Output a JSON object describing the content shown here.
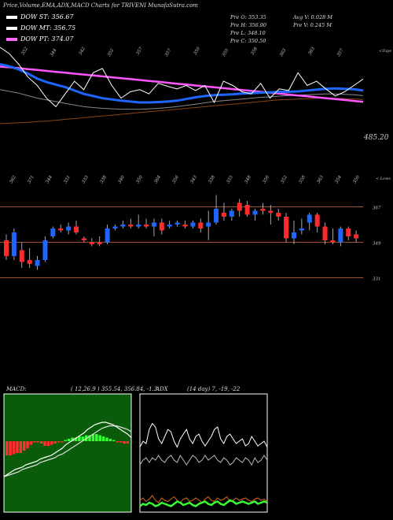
{
  "title": "Price,Volume,EMA,ADX,MACD Charts for TRIVENI MunafaSutra.com",
  "legend": [
    {
      "label": "DOW ST: 356.67",
      "color": "#ffffff"
    },
    {
      "label": "DOW MT: 356.75",
      "color": "#ffffff"
    },
    {
      "label": "DOW PT: 374.07",
      "color": "#ff66ff"
    }
  ],
  "stats": {
    "pre_o": "Pre  O: 353.35",
    "pre_h": "Pre  H: 356.90",
    "pre_l": "Pre  L: 348.10",
    "pre_c": "Pre  C: 350.50",
    "avg_v": "Avg V: 0.028  M",
    "pre_v": "Pre   V: 0.245 M"
  },
  "price_panel": {
    "last_price_label": "485.20",
    "top_axis_label": "<Tops",
    "top_tick_labels": [
      "352",
      "344",
      "342",
      "352",
      "357",
      "357",
      "350",
      "355",
      "358",
      "363",
      "363",
      "357"
    ],
    "upper_y_range": [
      300,
      560
    ],
    "ema_short": [
      520,
      515,
      508,
      498,
      486,
      478,
      472,
      466,
      458,
      450,
      445,
      440,
      437,
      434,
      432,
      430,
      430,
      431,
      432,
      434,
      438,
      442,
      445,
      447,
      448,
      449,
      451,
      452,
      453,
      454,
      455,
      455,
      456,
      458,
      460,
      462,
      463,
      462,
      461,
      458
    ],
    "ema_mid": [
      460,
      456,
      452,
      446,
      440,
      436,
      432,
      428,
      424,
      420,
      418,
      416,
      415,
      414,
      414,
      414,
      415,
      416,
      418,
      420,
      423,
      426,
      429,
      432,
      434,
      436,
      438,
      440,
      442,
      443,
      445,
      446,
      447,
      448,
      449,
      450,
      450,
      449,
      448,
      446
    ],
    "ema_long": [
      380,
      381,
      382,
      383,
      385,
      386,
      388,
      390,
      392,
      394,
      396,
      398,
      400,
      402,
      404,
      406,
      408,
      410,
      412,
      414,
      416,
      418,
      420,
      422,
      424,
      426,
      428,
      430,
      432,
      434,
      436,
      437,
      438,
      439,
      440,
      440,
      440,
      439,
      438,
      437
    ],
    "ema_pt": [
      470,
      468,
      465,
      462,
      459,
      456,
      453,
      450,
      447,
      444,
      441,
      438,
      435,
      432,
      429,
      426,
      423,
      420,
      417,
      414,
      411,
      408,
      405,
      402,
      399,
      396,
      393,
      390,
      387,
      384,
      381,
      378,
      375,
      372,
      369,
      366,
      363,
      360,
      357,
      354
    ],
    "close_line": [
      560,
      545,
      520,
      490,
      470,
      440,
      420,
      450,
      480,
      460,
      500,
      510,
      470,
      440,
      455,
      460,
      450,
      475,
      468,
      462,
      470,
      458,
      470,
      430,
      480,
      470,
      455,
      450,
      475,
      440,
      462,
      458,
      500,
      470,
      480,
      462,
      445,
      455,
      470,
      485
    ]
  },
  "candle_panel": {
    "bottom_axis_label": "< Lows",
    "low_tick_labels": [
      "362",
      "371",
      "344",
      "331",
      "333",
      "338",
      "340",
      "350",
      "364",
      "356",
      "343",
      "338",
      "355",
      "348",
      "356",
      "352",
      "358",
      "363",
      "354",
      "350"
    ],
    "level_labels": [
      "367",
      "349",
      "331"
    ],
    "levels": [
      367,
      349,
      331
    ],
    "y_range": [
      320,
      380
    ],
    "candles": [
      {
        "o": 350,
        "h": 353,
        "l": 340,
        "c": 342
      },
      {
        "o": 342,
        "h": 356,
        "l": 340,
        "c": 354
      },
      {
        "o": 345,
        "h": 349,
        "l": 336,
        "c": 339
      },
      {
        "o": 340,
        "h": 346,
        "l": 336,
        "c": 338
      },
      {
        "o": 337,
        "h": 342,
        "l": 335,
        "c": 340
      },
      {
        "o": 340,
        "h": 352,
        "l": 339,
        "c": 350
      },
      {
        "o": 352,
        "h": 357,
        "l": 351,
        "c": 356
      },
      {
        "o": 356,
        "h": 358,
        "l": 354,
        "c": 355
      },
      {
        "o": 355,
        "h": 359,
        "l": 353,
        "c": 357
      },
      {
        "o": 357,
        "h": 360,
        "l": 353,
        "c": 354
      },
      {
        "o": 351,
        "h": 352,
        "l": 349,
        "c": 350
      },
      {
        "o": 349,
        "h": 351,
        "l": 347,
        "c": 348
      },
      {
        "o": 349,
        "h": 352,
        "l": 347,
        "c": 348
      },
      {
        "o": 349,
        "h": 358,
        "l": 348,
        "c": 356
      },
      {
        "o": 356,
        "h": 358,
        "l": 355,
        "c": 357
      },
      {
        "o": 357,
        "h": 360,
        "l": 356,
        "c": 358
      },
      {
        "o": 358,
        "h": 361,
        "l": 356,
        "c": 357
      },
      {
        "o": 357,
        "h": 363,
        "l": 356,
        "c": 358
      },
      {
        "o": 358,
        "h": 361,
        "l": 356,
        "c": 357
      },
      {
        "o": 357,
        "h": 361,
        "l": 352,
        "c": 359
      },
      {
        "o": 359,
        "h": 361,
        "l": 353,
        "c": 355
      },
      {
        "o": 357,
        "h": 360,
        "l": 356,
        "c": 358
      },
      {
        "o": 358,
        "h": 360,
        "l": 357,
        "c": 359
      },
      {
        "o": 358,
        "h": 360,
        "l": 356,
        "c": 357
      },
      {
        "o": 357,
        "h": 360,
        "l": 356,
        "c": 359
      },
      {
        "o": 359,
        "h": 361,
        "l": 354,
        "c": 356
      },
      {
        "o": 357,
        "h": 365,
        "l": 350,
        "c": 359
      },
      {
        "o": 359,
        "h": 373,
        "l": 358,
        "c": 366
      },
      {
        "o": 364,
        "h": 369,
        "l": 360,
        "c": 362
      },
      {
        "o": 362,
        "h": 366,
        "l": 360,
        "c": 365
      },
      {
        "o": 369,
        "h": 371,
        "l": 362,
        "c": 365
      },
      {
        "o": 368,
        "h": 370,
        "l": 362,
        "c": 363
      },
      {
        "o": 363,
        "h": 366,
        "l": 360,
        "c": 365
      },
      {
        "o": 366,
        "h": 369,
        "l": 363,
        "c": 365
      },
      {
        "o": 365,
        "h": 368,
        "l": 358,
        "c": 364
      },
      {
        "o": 364,
        "h": 366,
        "l": 360,
        "c": 362
      },
      {
        "o": 362,
        "h": 364,
        "l": 349,
        "c": 351
      },
      {
        "o": 351,
        "h": 360,
        "l": 348,
        "c": 354
      },
      {
        "o": 355,
        "h": 361,
        "l": 353,
        "c": 356
      },
      {
        "o": 359,
        "h": 364,
        "l": 355,
        "c": 363
      },
      {
        "o": 363,
        "h": 364,
        "l": 354,
        "c": 357
      },
      {
        "o": 357,
        "h": 359,
        "l": 348,
        "c": 350
      },
      {
        "o": 350,
        "h": 356,
        "l": 348,
        "c": 349
      },
      {
        "o": 349,
        "h": 357,
        "l": 347,
        "c": 356
      },
      {
        "o": 356,
        "h": 357,
        "l": 350,
        "c": 352
      },
      {
        "o": 353,
        "h": 355,
        "l": 349,
        "c": 351
      }
    ]
  },
  "macd_panel": {
    "label": "MACD:",
    "params": "( 12,26,9 ) 355.54, 356.84, -1.3",
    "hist": [
      -12,
      -12,
      -11,
      -10,
      -10,
      -8,
      -6,
      -3,
      -1,
      -1,
      -2,
      -4,
      -4,
      -3,
      -2,
      -1,
      -1,
      1,
      2,
      3,
      3,
      4,
      4,
      5,
      5,
      6,
      6,
      5,
      4,
      3,
      2,
      1,
      -1,
      -1,
      -2,
      -2
    ],
    "macd": [
      -30,
      -28,
      -26,
      -24,
      -23,
      -22,
      -20,
      -19,
      -18,
      -17,
      -15,
      -14,
      -13,
      -12,
      -10,
      -8,
      -6,
      -3,
      -1,
      1,
      3,
      5,
      7,
      10,
      12,
      14,
      15,
      16,
      16,
      15,
      14,
      12,
      10,
      8,
      6,
      3
    ],
    "signal": [
      -30,
      -29,
      -28,
      -27,
      -26,
      -24,
      -23,
      -22,
      -21,
      -20,
      -18,
      -17,
      -16,
      -15,
      -14,
      -12,
      -11,
      -9,
      -7,
      -5,
      -3,
      -1,
      1,
      3,
      5,
      7,
      9,
      11,
      12,
      13,
      13,
      13,
      12,
      11,
      10,
      8
    ],
    "y_range": [
      -60,
      40
    ]
  },
  "adx_panel": {
    "label": "ADX",
    "params": "(14  day) 7, -19, -22",
    "plus_di": [
      55,
      60,
      58,
      70,
      75,
      72,
      62,
      58,
      64,
      70,
      68,
      60,
      55,
      62,
      66,
      70,
      62,
      58,
      64,
      66,
      60,
      56,
      60,
      64,
      70,
      72,
      62,
      58,
      64,
      66,
      62,
      58,
      60,
      62,
      56,
      58,
      64,
      60,
      56,
      58,
      60,
      55
    ],
    "minus_di": [
      40,
      44,
      46,
      42,
      46,
      44,
      48,
      44,
      42,
      46,
      48,
      44,
      42,
      48,
      44,
      40,
      44,
      48,
      46,
      42,
      44,
      48,
      44,
      46,
      48,
      44,
      42,
      46,
      44,
      40,
      42,
      46,
      44,
      42,
      46,
      44,
      40,
      46,
      42,
      44,
      48,
      44
    ],
    "adx": [
      10,
      12,
      9,
      11,
      14,
      10,
      8,
      12,
      10,
      9,
      11,
      13,
      10,
      8,
      11,
      12,
      9,
      10,
      12,
      10,
      8,
      11,
      13,
      10,
      9,
      12,
      10,
      11,
      13,
      9,
      10,
      12,
      10,
      11,
      12,
      10,
      9,
      11,
      12,
      10,
      11,
      9
    ],
    "di_green": [
      5,
      7,
      6,
      8,
      7,
      5,
      6,
      8,
      7,
      6,
      5,
      7,
      9,
      8,
      6,
      7,
      8,
      6,
      5,
      7,
      8,
      9,
      7,
      6,
      8,
      9,
      7,
      6,
      8,
      10,
      9,
      7,
      8,
      9,
      8,
      7,
      8,
      9,
      7,
      8,
      9,
      8
    ]
  }
}
